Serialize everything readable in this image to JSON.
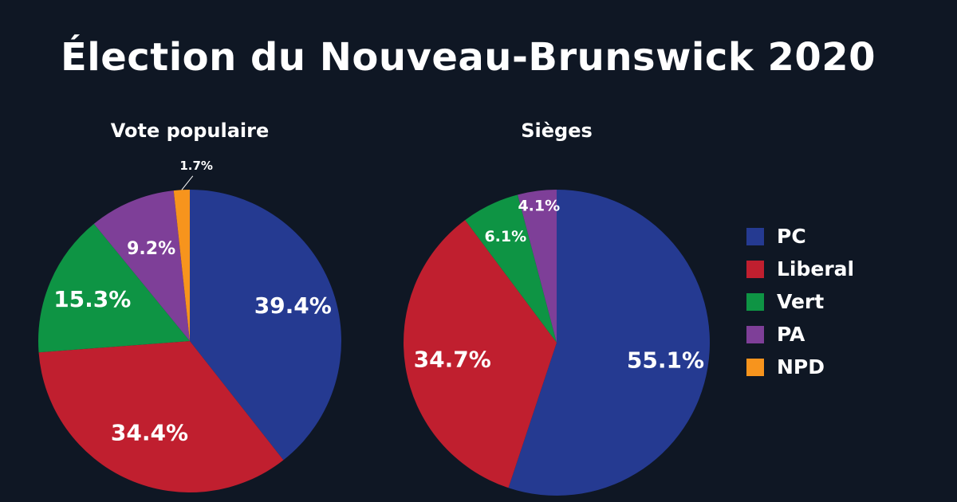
{
  "title": "Élection du Nouveau-Brunswick 2020",
  "chart_data": [
    {
      "type": "pie",
      "title": "Vote populaire",
      "start_angle_deg": 0,
      "direction": "clockwise",
      "slices": [
        {
          "label": "PC",
          "value": 39.4,
          "display": "39.4%",
          "color": "#253a91"
        },
        {
          "label": "Liberal",
          "value": 34.4,
          "display": "34.4%",
          "color": "#c01f2f"
        },
        {
          "label": "Vert",
          "value": 15.3,
          "display": "15.3%",
          "color": "#0e9444"
        },
        {
          "label": "PA",
          "value": 9.2,
          "display": "9.2%",
          "color": "#7e3f98"
        },
        {
          "label": "NPD",
          "value": 1.7,
          "display": "1.7%",
          "color": "#f7941d"
        }
      ]
    },
    {
      "type": "pie",
      "title": "Sièges",
      "start_angle_deg": 0,
      "direction": "clockwise",
      "slices": [
        {
          "label": "PC",
          "value": 55.1,
          "display": "55.1%",
          "color": "#253a91"
        },
        {
          "label": "Liberal",
          "value": 34.7,
          "display": "34.7%",
          "color": "#c01f2f"
        },
        {
          "label": "Vert",
          "value": 6.1,
          "display": "6.1%",
          "color": "#0e9444"
        },
        {
          "label": "PA",
          "value": 4.1,
          "display": "4.1%",
          "color": "#7e3f98"
        }
      ]
    }
  ],
  "legend": {
    "placement": "right",
    "items": [
      {
        "label": "PC",
        "color": "#253a91"
      },
      {
        "label": "Liberal",
        "color": "#c01f2f"
      },
      {
        "label": "Vert",
        "color": "#0e9444"
      },
      {
        "label": "PA",
        "color": "#7e3f98"
      },
      {
        "label": "NPD",
        "color": "#f7941d"
      }
    ]
  }
}
